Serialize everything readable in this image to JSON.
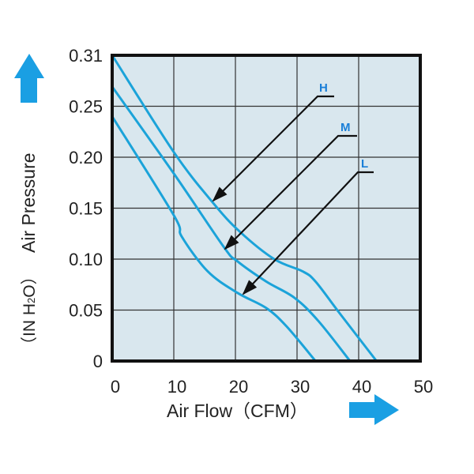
{
  "chart_data": {
    "type": "line",
    "title": "",
    "xlabel": "Air Flow（CFM）",
    "ylabel": "Air Pressure",
    "ylabel_unit": "（IN H2O）",
    "ylabel_unit_parts": {
      "pre": "（IN H",
      "sub": "2",
      "post": "O）"
    },
    "xlim": [
      0,
      50
    ],
    "ylim": [
      0,
      0.31
    ],
    "x_ticks": [
      "0",
      "10",
      "20",
      "30",
      "40",
      "50"
    ],
    "x_tick_values": [
      0,
      10,
      20,
      30,
      40,
      50
    ],
    "y_ticks": [
      "0",
      "0.05",
      "0.10",
      "0.15",
      "0.20",
      "0.25",
      "0.31"
    ],
    "y_tick_values": [
      0,
      0.05,
      0.1,
      0.15,
      0.2,
      0.25,
      0.31
    ],
    "grid": true,
    "colors": {
      "curve": "#1ba3d9",
      "plot_bg": "#d9e7ee",
      "arrow": "#1a9fe3",
      "label": "#1a7fd8"
    },
    "series": [
      {
        "name": "H",
        "x": [
          0,
          10,
          16.4,
          20.7,
          26.3,
          30.9,
          33,
          36.9,
          42.9
        ],
        "y": [
          0.31,
          0.205,
          0.155,
          0.127,
          0.1,
          0.088,
          0.078,
          0.047,
          0
        ]
      },
      {
        "name": "M",
        "x": [
          0,
          10,
          18.1,
          20.3,
          25,
          29.6,
          33.5,
          38.6
        ],
        "y": [
          0.273,
          0.184,
          0.112,
          0.098,
          0.078,
          0.062,
          0.039,
          0
        ]
      },
      {
        "name": "L",
        "x": [
          0,
          10,
          11.3,
          15.5,
          20.3,
          25,
          28.3,
          33
        ],
        "y": [
          0.24,
          0.143,
          0.122,
          0.088,
          0.067,
          0.052,
          0.034,
          0
        ]
      }
    ]
  }
}
